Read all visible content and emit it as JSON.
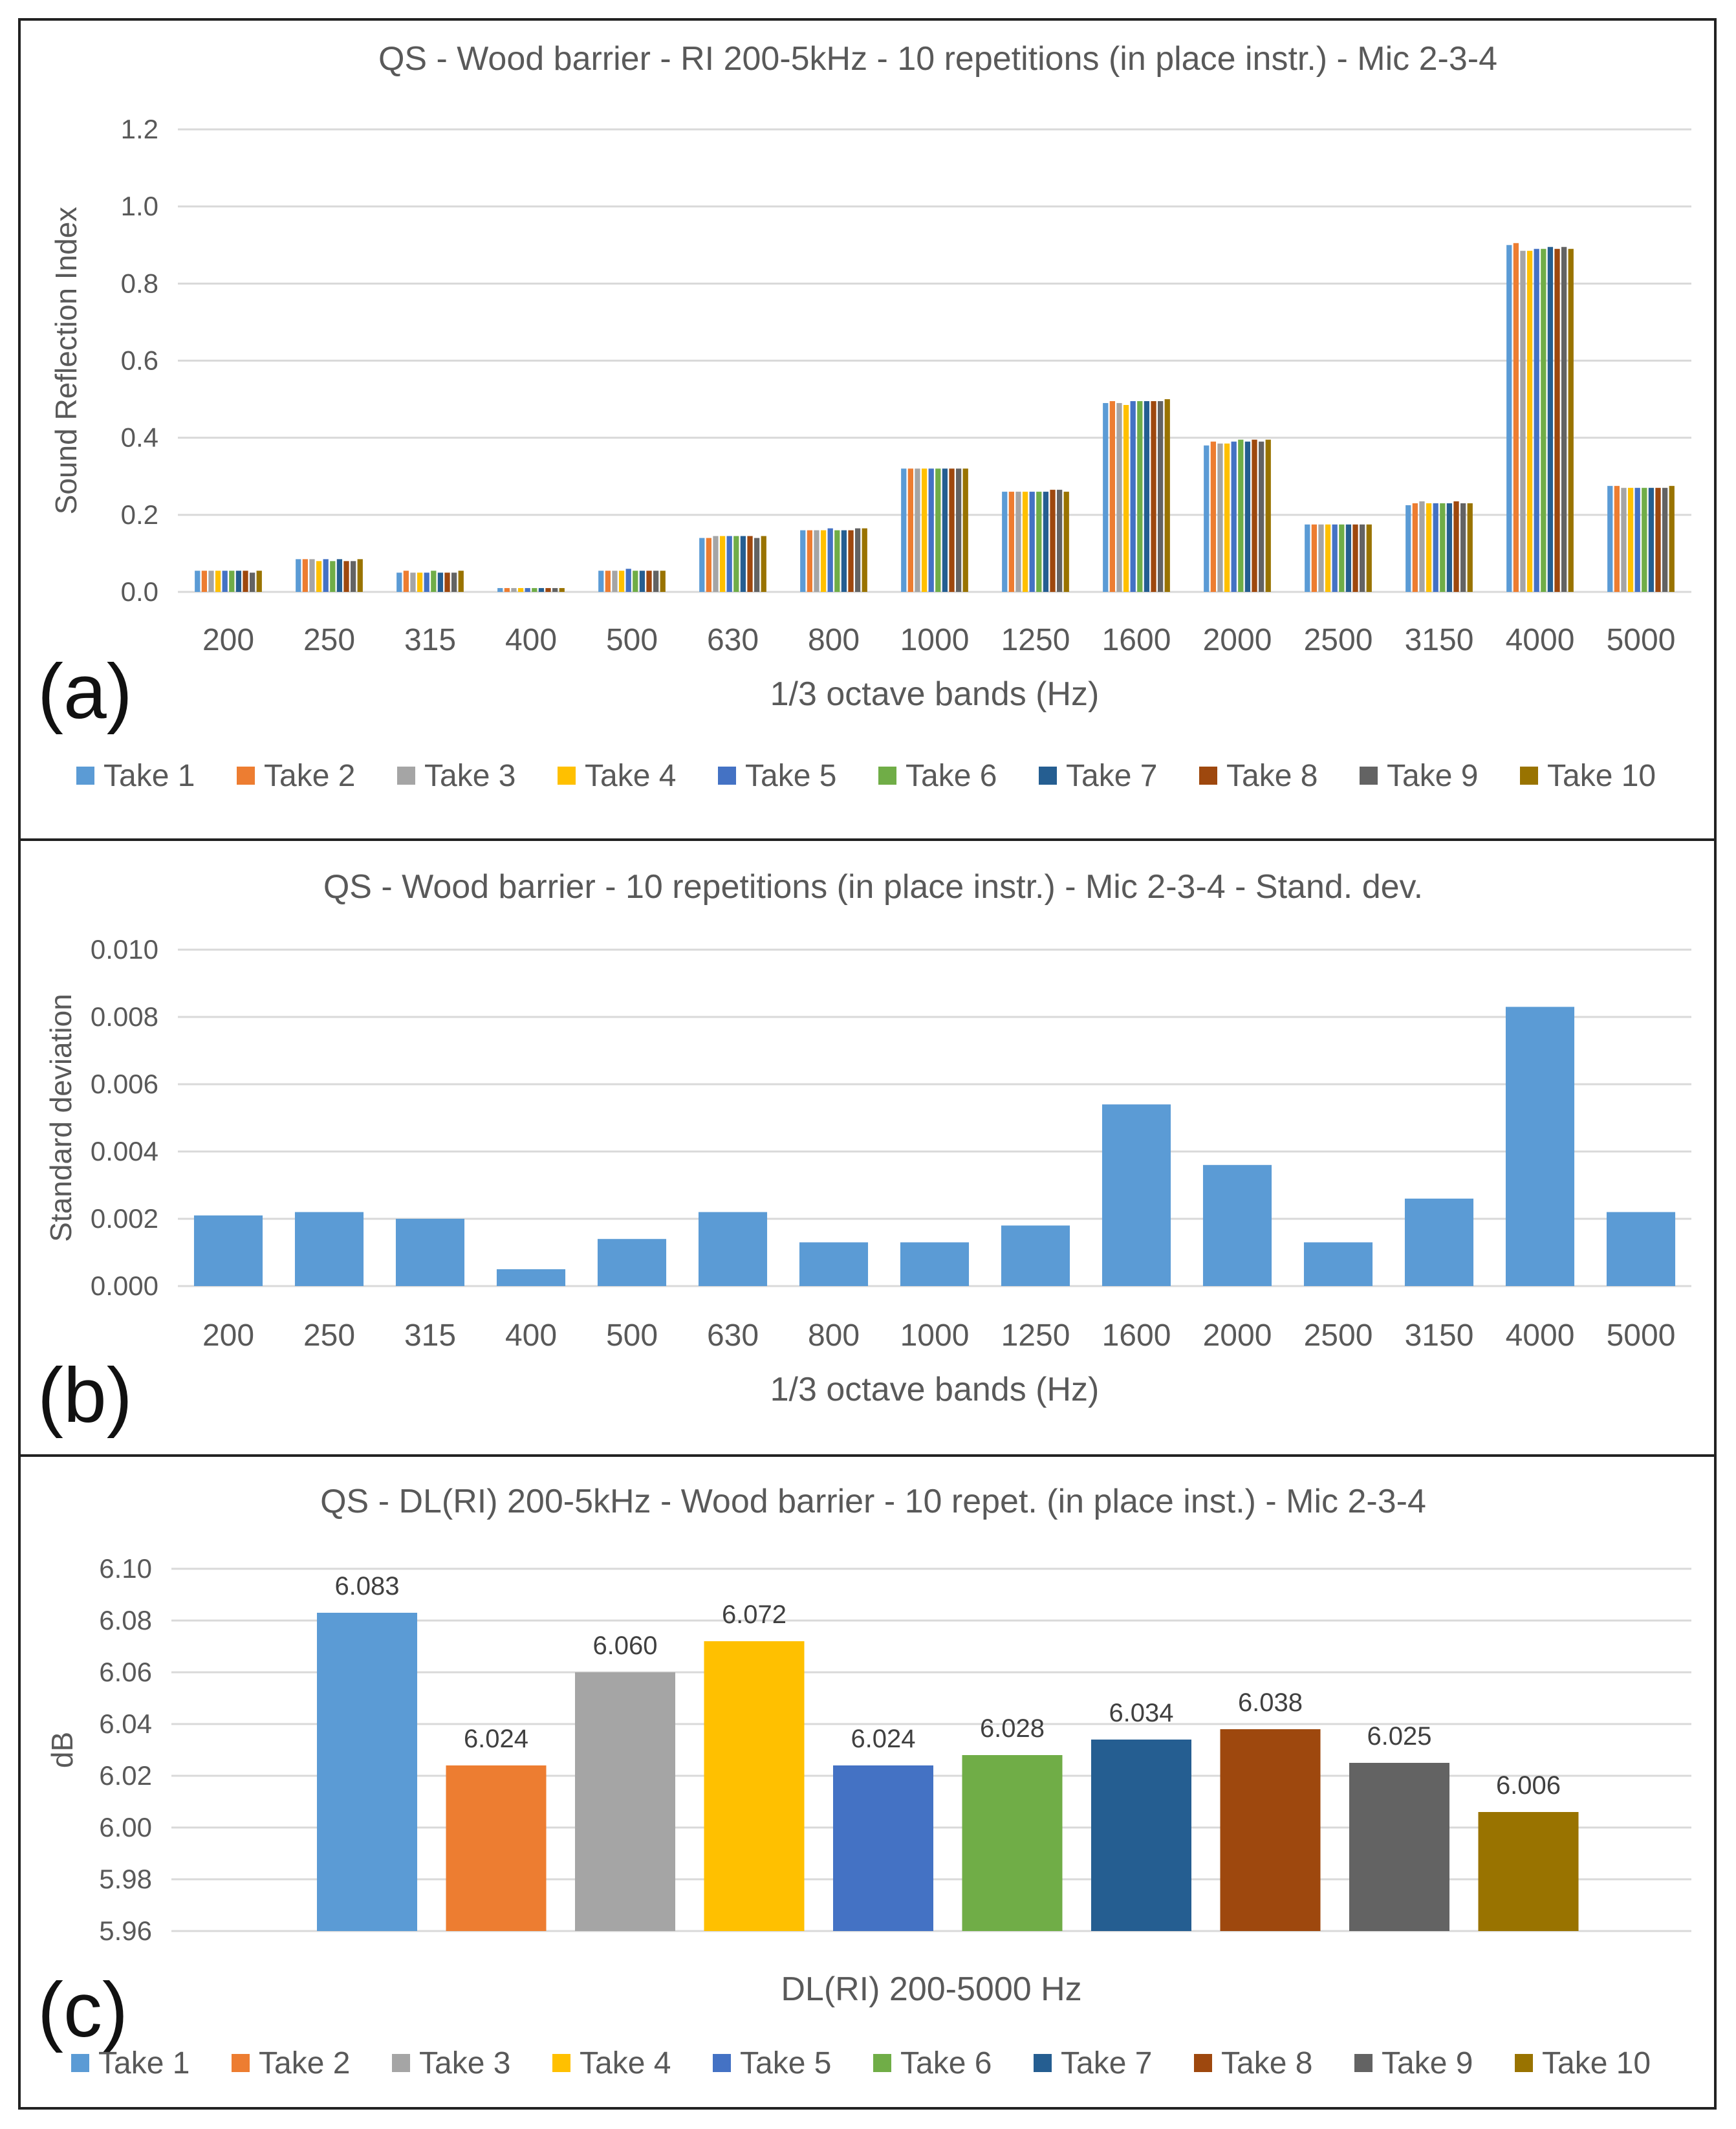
{
  "colors": {
    "take_colors": [
      "#5B9BD5",
      "#ED7D31",
      "#A5A5A5",
      "#FFC000",
      "#4472C4",
      "#70AD47",
      "#255E91",
      "#9E480E",
      "#636363",
      "#997300"
    ],
    "grid": "#d9d9d9",
    "single_series": "#5B9BD5"
  },
  "chart_data": [
    {
      "id": "a",
      "type": "bar",
      "panel_letter": "(a)",
      "title": "QS - Wood barrier - RI 200-5kHz - 10 repetitions (in place instr.) - Mic 2-3-4",
      "xlabel": "1/3 octave bands (Hz)",
      "ylabel": "Sound Reflection Index",
      "ylim": [
        0,
        1.2
      ],
      "yticks": [
        "0.0",
        "0.2",
        "0.4",
        "0.6",
        "0.8",
        "1.0",
        "1.2"
      ],
      "grid": true,
      "legend": "bottom",
      "categories": [
        "200",
        "250",
        "315",
        "400",
        "500",
        "630",
        "800",
        "1000",
        "1250",
        "1600",
        "2000",
        "2500",
        "3150",
        "4000",
        "5000"
      ],
      "series": [
        {
          "name": "Take 1",
          "values": [
            0.055,
            0.085,
            0.05,
            0.01,
            0.055,
            0.14,
            0.16,
            0.32,
            0.26,
            0.49,
            0.38,
            0.175,
            0.225,
            0.9,
            0.275
          ]
        },
        {
          "name": "Take 2",
          "values": [
            0.055,
            0.085,
            0.055,
            0.01,
            0.055,
            0.14,
            0.16,
            0.32,
            0.26,
            0.495,
            0.39,
            0.175,
            0.23,
            0.905,
            0.275
          ]
        },
        {
          "name": "Take 3",
          "values": [
            0.055,
            0.085,
            0.05,
            0.01,
            0.055,
            0.145,
            0.16,
            0.32,
            0.26,
            0.49,
            0.385,
            0.175,
            0.235,
            0.885,
            0.27
          ]
        },
        {
          "name": "Take 4",
          "values": [
            0.055,
            0.08,
            0.05,
            0.01,
            0.055,
            0.145,
            0.16,
            0.32,
            0.26,
            0.485,
            0.385,
            0.175,
            0.23,
            0.885,
            0.27
          ]
        },
        {
          "name": "Take 5",
          "values": [
            0.055,
            0.085,
            0.05,
            0.01,
            0.06,
            0.145,
            0.165,
            0.32,
            0.26,
            0.495,
            0.39,
            0.175,
            0.23,
            0.89,
            0.27
          ]
        },
        {
          "name": "Take 6",
          "values": [
            0.055,
            0.08,
            0.055,
            0.01,
            0.055,
            0.145,
            0.16,
            0.32,
            0.26,
            0.495,
            0.395,
            0.175,
            0.23,
            0.89,
            0.27
          ]
        },
        {
          "name": "Take 7",
          "values": [
            0.055,
            0.085,
            0.05,
            0.01,
            0.055,
            0.145,
            0.16,
            0.32,
            0.26,
            0.495,
            0.39,
            0.175,
            0.23,
            0.895,
            0.27
          ]
        },
        {
          "name": "Take 8",
          "values": [
            0.055,
            0.08,
            0.05,
            0.01,
            0.055,
            0.145,
            0.16,
            0.32,
            0.265,
            0.495,
            0.395,
            0.175,
            0.235,
            0.89,
            0.27
          ]
        },
        {
          "name": "Take 9",
          "values": [
            0.05,
            0.08,
            0.05,
            0.01,
            0.055,
            0.14,
            0.165,
            0.32,
            0.265,
            0.495,
            0.39,
            0.175,
            0.23,
            0.895,
            0.27
          ]
        },
        {
          "name": "Take 10",
          "values": [
            0.055,
            0.085,
            0.055,
            0.01,
            0.055,
            0.145,
            0.165,
            0.32,
            0.26,
            0.5,
            0.395,
            0.175,
            0.23,
            0.89,
            0.275
          ]
        }
      ]
    },
    {
      "id": "b",
      "type": "bar",
      "panel_letter": "(b)",
      "title": "QS - Wood barrier - 10 repetitions (in place instr.) - Mic 2-3-4 - Stand. dev.",
      "xlabel": "1/3 octave bands (Hz)",
      "ylabel": "Standard deviation",
      "ylim": [
        0,
        0.01
      ],
      "yticks": [
        "0.000",
        "0.002",
        "0.004",
        "0.006",
        "0.008",
        "0.010"
      ],
      "grid": true,
      "categories": [
        "200",
        "250",
        "315",
        "400",
        "500",
        "630",
        "800",
        "1000",
        "1250",
        "1600",
        "2000",
        "2500",
        "3150",
        "4000",
        "5000"
      ],
      "values": [
        0.0021,
        0.0022,
        0.002,
        0.0005,
        0.0014,
        0.0022,
        0.0013,
        0.0013,
        0.0018,
        0.0054,
        0.0036,
        0.0013,
        0.0026,
        0.0083,
        0.0022
      ]
    },
    {
      "id": "c",
      "type": "bar",
      "panel_letter": "(c)",
      "title": "QS - DL(RI) 200-5kHz - Wood barrier - 10 repet. (in place inst.) - Mic 2-3-4",
      "xlabel": "DL(RI) 200-5000 Hz",
      "ylabel": "dB",
      "ylim": [
        5.96,
        6.1
      ],
      "yticks": [
        "5.96",
        "5.98",
        "6.00",
        "6.02",
        "6.04",
        "6.06",
        "6.08",
        "6.10"
      ],
      "grid": true,
      "legend": "bottom",
      "categories": [
        "Take 1",
        "Take 2",
        "Take 3",
        "Take 4",
        "Take 5",
        "Take 6",
        "Take 7",
        "Take 8",
        "Take 9",
        "Take 10"
      ],
      "values": [
        6.083,
        6.024,
        6.06,
        6.072,
        6.024,
        6.028,
        6.034,
        6.038,
        6.025,
        6.006
      ],
      "data_labels": [
        "6.083",
        "6.024",
        "6.060",
        "6.072",
        "6.024",
        "6.028",
        "6.034",
        "6.038",
        "6.025",
        "6.006"
      ]
    }
  ]
}
